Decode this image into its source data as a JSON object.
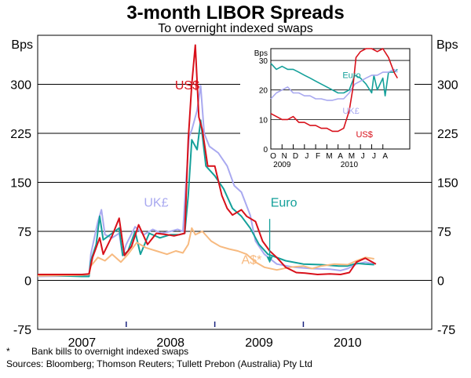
{
  "chart_data": [
    {
      "type": "line",
      "title": "3-month LIBOR Spreads",
      "subtitle": "To overnight indexed swaps",
      "ylabel": "Bps",
      "ylim": [
        -75,
        375
      ],
      "yticks": [
        -75,
        0,
        75,
        150,
        225,
        300
      ],
      "ytick_labels": [
        "-75",
        "0",
        "75",
        "150",
        "225",
        "300"
      ],
      "xlim": [
        2006.5,
        2010.95
      ],
      "year_labels": [
        {
          "x": 2007.0,
          "label": "2007"
        },
        {
          "x": 2008.0,
          "label": "2008"
        },
        {
          "x": 2009.0,
          "label": "2009"
        },
        {
          "x": 2010.0,
          "label": "2010"
        }
      ],
      "year_boundaries": [
        2007.5,
        2008.5,
        2009.5
      ],
      "series": [
        {
          "name": "UK£",
          "key": "uk",
          "color": "#a9a9f0",
          "points": [
            [
              2006.5,
              6
            ],
            [
              2007.0,
              7
            ],
            [
              2007.08,
              8
            ],
            [
              2007.1,
              40
            ],
            [
              2007.18,
              90
            ],
            [
              2007.22,
              108
            ],
            [
              2007.26,
              70
            ],
            [
              2007.34,
              65
            ],
            [
              2007.42,
              72
            ],
            [
              2007.46,
              38
            ],
            [
              2007.5,
              55
            ],
            [
              2007.6,
              82
            ],
            [
              2007.7,
              70
            ],
            [
              2007.8,
              78
            ],
            [
              2007.9,
              72
            ],
            [
              2008.0,
              75
            ],
            [
              2008.08,
              78
            ],
            [
              2008.14,
              75
            ],
            [
              2008.18,
              160
            ],
            [
              2008.21,
              220
            ],
            [
              2008.24,
              230
            ],
            [
              2008.3,
              260
            ],
            [
              2008.34,
              298
            ],
            [
              2008.38,
              225
            ],
            [
              2008.44,
              205
            ],
            [
              2008.54,
              195
            ],
            [
              2008.64,
              175
            ],
            [
              2008.72,
              145
            ],
            [
              2008.8,
              135
            ],
            [
              2008.9,
              100
            ],
            [
              2008.96,
              60
            ],
            [
              2009.06,
              40
            ],
            [
              2009.2,
              25
            ],
            [
              2009.4,
              20
            ],
            [
              2009.6,
              18
            ],
            [
              2009.8,
              17
            ],
            [
              2009.92,
              15
            ],
            [
              2010.0,
              18
            ],
            [
              2010.1,
              25
            ],
            [
              2010.2,
              28
            ],
            [
              2010.3,
              25
            ]
          ]
        },
        {
          "name": "Euro",
          "key": "euro",
          "color": "#14a09a",
          "points": [
            [
              2006.5,
              8
            ],
            [
              2007.0,
              6
            ],
            [
              2007.08,
              6
            ],
            [
              2007.1,
              30
            ],
            [
              2007.16,
              55
            ],
            [
              2007.2,
              98
            ],
            [
              2007.24,
              62
            ],
            [
              2007.34,
              72
            ],
            [
              2007.42,
              80
            ],
            [
              2007.46,
              38
            ],
            [
              2007.52,
              45
            ],
            [
              2007.6,
              75
            ],
            [
              2007.66,
              40
            ],
            [
              2007.76,
              72
            ],
            [
              2007.88,
              65
            ],
            [
              2008.0,
              70
            ],
            [
              2008.1,
              70
            ],
            [
              2008.16,
              72
            ],
            [
              2008.2,
              130
            ],
            [
              2008.24,
              215
            ],
            [
              2008.3,
              200
            ],
            [
              2008.34,
              245
            ],
            [
              2008.4,
              175
            ],
            [
              2008.5,
              160
            ],
            [
              2008.6,
              140
            ],
            [
              2008.7,
              110
            ],
            [
              2008.8,
              98
            ],
            [
              2008.9,
              80
            ],
            [
              2009.0,
              55
            ],
            [
              2009.1,
              40
            ],
            [
              2009.3,
              30
            ],
            [
              2009.5,
              25
            ],
            [
              2009.7,
              24
            ],
            [
              2009.9,
              22
            ],
            [
              2010.0,
              22
            ],
            [
              2010.1,
              26
            ],
            [
              2010.2,
              25
            ],
            [
              2010.3,
              24
            ]
          ]
        },
        {
          "name": "A$*",
          "key": "aud",
          "color": "#f7ba80",
          "points": [
            [
              2006.5,
              7
            ],
            [
              2007.0,
              8
            ],
            [
              2007.08,
              9
            ],
            [
              2007.1,
              22
            ],
            [
              2007.18,
              35
            ],
            [
              2007.26,
              30
            ],
            [
              2007.34,
              40
            ],
            [
              2007.44,
              28
            ],
            [
              2007.52,
              40
            ],
            [
              2007.62,
              58
            ],
            [
              2007.72,
              50
            ],
            [
              2007.84,
              45
            ],
            [
              2007.96,
              40
            ],
            [
              2008.06,
              45
            ],
            [
              2008.14,
              42
            ],
            [
              2008.2,
              55
            ],
            [
              2008.24,
              80
            ],
            [
              2008.28,
              70
            ],
            [
              2008.36,
              75
            ],
            [
              2008.46,
              60
            ],
            [
              2008.56,
              52
            ],
            [
              2008.66,
              48
            ],
            [
              2008.76,
              45
            ],
            [
              2008.86,
              40
            ],
            [
              2008.96,
              28
            ],
            [
              2009.06,
              20
            ],
            [
              2009.2,
              16
            ],
            [
              2009.35,
              20
            ],
            [
              2009.5,
              22
            ],
            [
              2009.6,
              18
            ],
            [
              2009.7,
              22
            ],
            [
              2009.85,
              25
            ],
            [
              2010.0,
              24
            ],
            [
              2010.1,
              30
            ],
            [
              2010.2,
              35
            ],
            [
              2010.3,
              33
            ]
          ]
        },
        {
          "name": "US$",
          "key": "us",
          "color": "#d8101a",
          "points": [
            [
              2006.5,
              9
            ],
            [
              2007.0,
              9
            ],
            [
              2007.08,
              10
            ],
            [
              2007.12,
              35
            ],
            [
              2007.2,
              65
            ],
            [
              2007.24,
              40
            ],
            [
              2007.34,
              68
            ],
            [
              2007.42,
              95
            ],
            [
              2007.48,
              38
            ],
            [
              2007.56,
              52
            ],
            [
              2007.64,
              85
            ],
            [
              2007.74,
              55
            ],
            [
              2007.84,
              72
            ],
            [
              2007.96,
              70
            ],
            [
              2008.04,
              68
            ],
            [
              2008.1,
              70
            ],
            [
              2008.16,
              72
            ],
            [
              2008.2,
              215
            ],
            [
              2008.24,
              300
            ],
            [
              2008.28,
              360
            ],
            [
              2008.32,
              250
            ],
            [
              2008.36,
              230
            ],
            [
              2008.42,
              175
            ],
            [
              2008.5,
              175
            ],
            [
              2008.58,
              130
            ],
            [
              2008.64,
              110
            ],
            [
              2008.7,
              100
            ],
            [
              2008.8,
              108
            ],
            [
              2008.86,
              98
            ],
            [
              2008.96,
              90
            ],
            [
              2009.04,
              60
            ],
            [
              2009.12,
              45
            ],
            [
              2009.2,
              35
            ],
            [
              2009.3,
              20
            ],
            [
              2009.42,
              12
            ],
            [
              2009.52,
              11
            ],
            [
              2009.66,
              9
            ],
            [
              2009.8,
              10
            ],
            [
              2009.92,
              9
            ],
            [
              2010.02,
              12
            ],
            [
              2010.1,
              28
            ],
            [
              2010.2,
              34
            ],
            [
              2010.28,
              28
            ],
            [
              2010.32,
              25
            ]
          ]
        }
      ],
      "series_labels": [
        {
          "text": "US$",
          "series": "us",
          "x": 2008.05,
          "y": 292
        },
        {
          "text": "UK£",
          "series": "uk",
          "x": 2007.7,
          "y": 113
        },
        {
          "text": "Euro",
          "series": "euro",
          "x": 2009.13,
          "y": 113
        },
        {
          "text": "A$*",
          "series": "aud",
          "x": 2008.8,
          "y": 25
        }
      ],
      "annotation_arrow": {
        "series": "euro",
        "from": [
          2009.12,
          94
        ],
        "to": [
          2009.12,
          35
        ]
      }
    },
    {
      "type": "line",
      "inset": true,
      "ylabel": "Bps",
      "ylim": [
        0,
        34
      ],
      "yticks": [
        0,
        10,
        20,
        30
      ],
      "ytick_labels": [
        "0",
        "10",
        "20",
        "30"
      ],
      "xlim": [
        0,
        12.4
      ],
      "month_labels": [
        "O",
        "N",
        "D",
        "J",
        "F",
        "M",
        "A",
        "M",
        "J",
        "J",
        "A"
      ],
      "year_labels": [
        {
          "x": 1.0,
          "label": "2009"
        },
        {
          "x": 7.0,
          "label": "2010"
        }
      ],
      "series": [
        {
          "name": "Euro",
          "key": "euro",
          "color": "#14a09a",
          "points": [
            [
              0,
              29
            ],
            [
              0.5,
              27
            ],
            [
              1,
              28
            ],
            [
              1.5,
              27
            ],
            [
              2,
              27
            ],
            [
              2.5,
              26
            ],
            [
              3,
              25
            ],
            [
              3.5,
              24
            ],
            [
              4,
              23
            ],
            [
              4.5,
              22
            ],
            [
              5,
              21
            ],
            [
              5.5,
              20
            ],
            [
              6,
              19
            ],
            [
              6.5,
              19
            ],
            [
              7,
              20
            ],
            [
              7.5,
              25
            ],
            [
              8,
              24
            ],
            [
              8.5,
              22
            ],
            [
              9,
              19
            ],
            [
              9.2,
              25
            ],
            [
              9.5,
              20
            ],
            [
              10,
              24
            ],
            [
              10.2,
              18
            ],
            [
              10.5,
              26
            ],
            [
              11,
              26
            ],
            [
              11.3,
              27
            ]
          ]
        },
        {
          "name": "UK£",
          "key": "uk",
          "color": "#a9a9f0",
          "points": [
            [
              0,
              17
            ],
            [
              0.5,
              19
            ],
            [
              1,
              20
            ],
            [
              1.5,
              21
            ],
            [
              2,
              19
            ],
            [
              2.5,
              19
            ],
            [
              3,
              18
            ],
            [
              3.5,
              18
            ],
            [
              4,
              17
            ],
            [
              4.5,
              17
            ],
            [
              5,
              16.5
            ],
            [
              5.5,
              16.5
            ],
            [
              6,
              17
            ],
            [
              6.5,
              17
            ],
            [
              7,
              19
            ],
            [
              7.5,
              22
            ],
            [
              8,
              23
            ],
            [
              8.5,
              24
            ],
            [
              9,
              25
            ],
            [
              9.5,
              25
            ],
            [
              10,
              26
            ],
            [
              10.5,
              26
            ],
            [
              11,
              27
            ],
            [
              11.3,
              26
            ]
          ]
        },
        {
          "name": "US$",
          "key": "us",
          "color": "#d8101a",
          "points": [
            [
              0,
              12
            ],
            [
              0.5,
              11
            ],
            [
              1,
              10
            ],
            [
              1.5,
              10
            ],
            [
              2,
              11
            ],
            [
              2.5,
              9
            ],
            [
              3,
              9
            ],
            [
              3.5,
              8
            ],
            [
              4,
              8
            ],
            [
              4.5,
              7
            ],
            [
              5,
              7
            ],
            [
              5.5,
              6
            ],
            [
              6,
              6
            ],
            [
              6.5,
              7
            ],
            [
              7,
              13
            ],
            [
              7.3,
              20
            ],
            [
              7.6,
              31
            ],
            [
              8,
              33
            ],
            [
              8.5,
              34
            ],
            [
              9,
              34
            ],
            [
              9.5,
              33
            ],
            [
              10,
              34
            ],
            [
              10.5,
              31
            ],
            [
              11,
              26
            ],
            [
              11.3,
              24
            ]
          ]
        }
      ],
      "series_labels": [
        {
          "text": "Euro",
          "series": "euro",
          "x": 6.4,
          "y": 24
        },
        {
          "text": "UK£",
          "series": "uk",
          "x": 6.4,
          "y": 12
        },
        {
          "text": "US$",
          "series": "us",
          "x": 7.6,
          "y": 4
        }
      ]
    }
  ],
  "footnote": {
    "marker": "*",
    "text": "Bank bills to overnight indexed swaps",
    "sources": "Sources: Bloomberg; Thomson Reuters; Tullett Prebon (Australia) Pty Ltd"
  }
}
